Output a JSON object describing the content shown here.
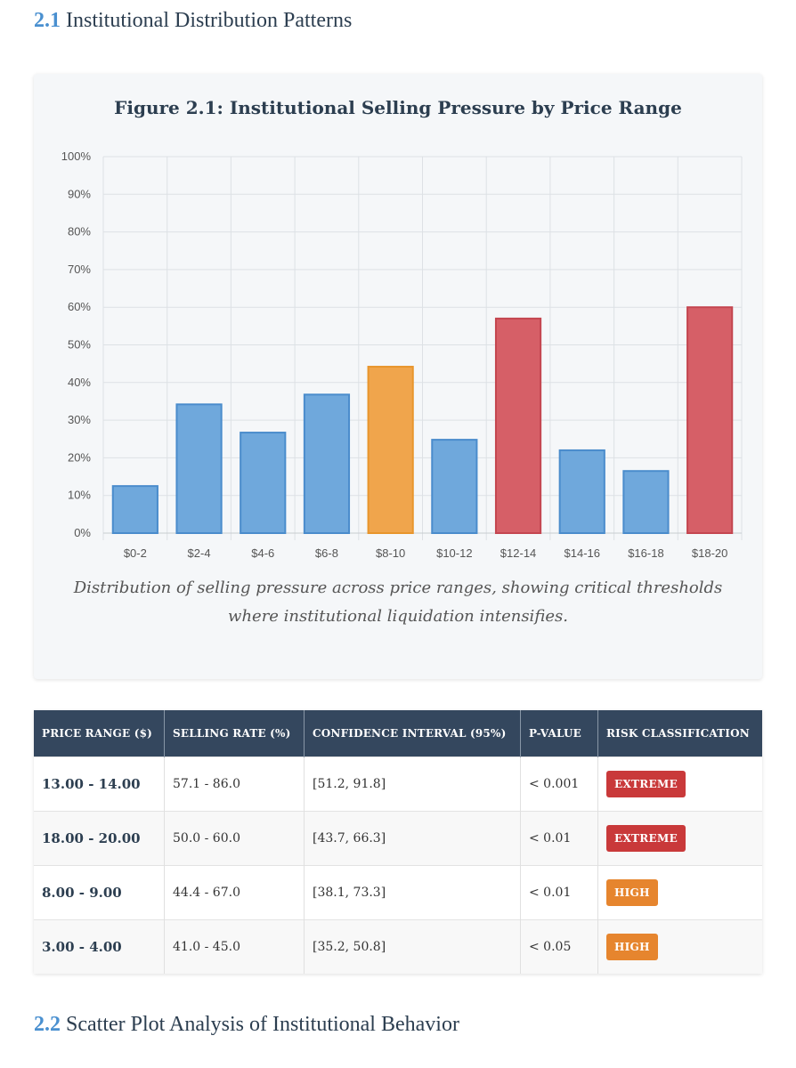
{
  "section1": {
    "number": "2.1",
    "title": "Institutional Distribution Patterns"
  },
  "figure": {
    "title": "Figure 2.1: Institutional Selling Pressure by Price Range",
    "caption": "Distribution of selling pressure across price ranges, showing critical thresholds where institutional liquidation intensifies."
  },
  "chart_data": {
    "type": "bar",
    "categories": [
      "$0-2",
      "$2-4",
      "$4-6",
      "$6-8",
      "$8-10",
      "$10-12",
      "$12-14",
      "$14-16",
      "$16-18",
      "$18-20"
    ],
    "values": [
      12.5,
      34.2,
      26.7,
      36.8,
      44.2,
      24.8,
      57.0,
      22.0,
      16.5,
      60.0
    ],
    "bar_colors": [
      "#6fa8dc",
      "#6fa8dc",
      "#6fa8dc",
      "#6fa8dc",
      "#f0a54c",
      "#6fa8dc",
      "#d65f67",
      "#6fa8dc",
      "#6fa8dc",
      "#d65f67"
    ],
    "bar_border_colors": [
      "#4a8ccc",
      "#4a8ccc",
      "#4a8ccc",
      "#4a8ccc",
      "#e8952c",
      "#4a8ccc",
      "#c44650",
      "#4a8ccc",
      "#4a8ccc",
      "#c44650"
    ],
    "ylim": [
      0,
      100
    ],
    "yticks": [
      0,
      10,
      20,
      30,
      40,
      50,
      60,
      70,
      80,
      90,
      100
    ],
    "ytick_labels": [
      "0%",
      "10%",
      "20%",
      "30%",
      "40%",
      "50%",
      "60%",
      "70%",
      "80%",
      "90%",
      "100%"
    ],
    "grid": true,
    "xlabel": "",
    "ylabel": ""
  },
  "table": {
    "headers": [
      "PRICE RANGE ($)",
      "SELLING RATE (%)",
      "CONFIDENCE INTERVAL (95%)",
      "P-VALUE",
      "RISK CLASSIFICATION"
    ],
    "rows": [
      {
        "range": "13.00 - 14.00",
        "rate": "57.1 - 86.0",
        "ci": "[51.2, 91.8]",
        "p": "< 0.001",
        "risk": "EXTREME",
        "risk_color": "#c9393a"
      },
      {
        "range": "18.00 - 20.00",
        "rate": "50.0 - 60.0",
        "ci": "[43.7, 66.3]",
        "p": "< 0.01",
        "risk": "EXTREME",
        "risk_color": "#c9393a"
      },
      {
        "range": "8.00 - 9.00",
        "rate": "44.4 - 67.0",
        "ci": "[38.1, 73.3]",
        "p": "< 0.01",
        "risk": "HIGH",
        "risk_color": "#e6852e"
      },
      {
        "range": "3.00 - 4.00",
        "rate": "41.0 - 45.0",
        "ci": "[35.2, 50.8]",
        "p": "< 0.05",
        "risk": "HIGH",
        "risk_color": "#e6852e"
      }
    ]
  },
  "section2": {
    "number": "2.2",
    "title": "Scatter Plot Analysis of Institutional Behavior"
  }
}
